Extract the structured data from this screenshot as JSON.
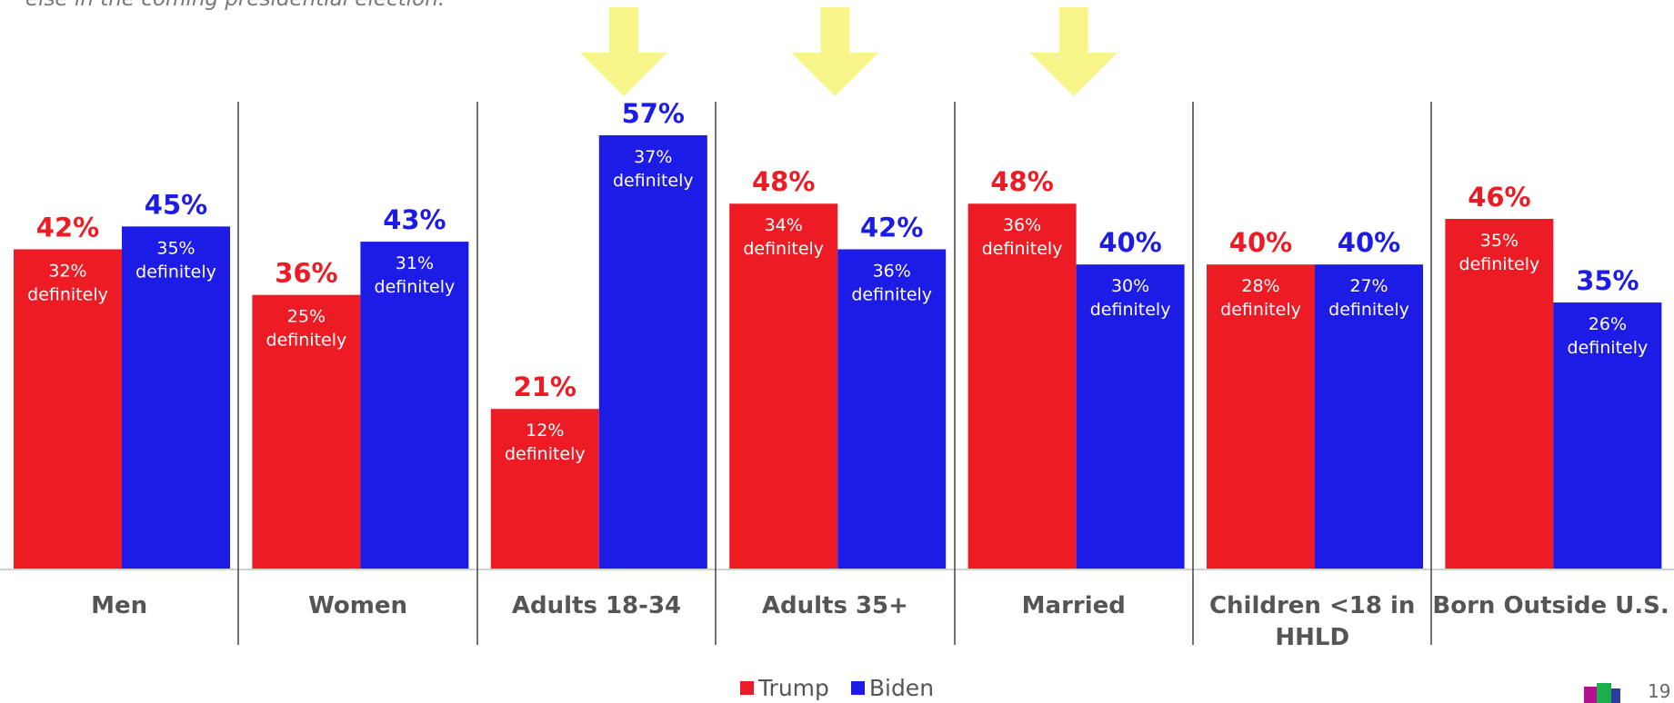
{
  "subtitle": "else in the coming presidential election.",
  "chart_data": {
    "type": "bar",
    "categories": [
      "Men",
      "Women",
      "Adults 18-34",
      "Adults 35+",
      "Married",
      "Children <18 in HHLD",
      "Born Outside U.S."
    ],
    "ylim": [
      0,
      70
    ],
    "grid": false,
    "series": [
      {
        "name": "Trump",
        "color": "#ED1C24",
        "values": [
          42,
          36,
          21,
          48,
          48,
          40,
          46
        ],
        "labels": [
          "42%",
          "36%",
          "21%",
          "48%",
          "48%",
          "40%",
          "46%"
        ],
        "definitely": [
          "32%",
          "25%",
          "12%",
          "34%",
          "36%",
          "28%",
          "35%"
        ]
      },
      {
        "name": "Biden",
        "color": "#1C1CE6",
        "values": [
          45,
          43,
          57,
          42,
          40,
          40,
          35
        ],
        "labels": [
          "45%",
          "43%",
          "57%",
          "42%",
          "40%",
          "40%",
          "35%"
        ],
        "definitely": [
          "35%",
          "31%",
          "37%",
          "36%",
          "30%",
          "27%",
          "26%"
        ]
      }
    ],
    "definitely_word": "definitely",
    "highlighted_categories": [
      "Adults 18-34",
      "Adults 35+",
      "Married"
    ],
    "arrow_color": "#F8F58A",
    "legend_position": "bottom-center"
  },
  "legend": {
    "trump": "Trump",
    "biden": "Biden"
  },
  "page_number": "19"
}
